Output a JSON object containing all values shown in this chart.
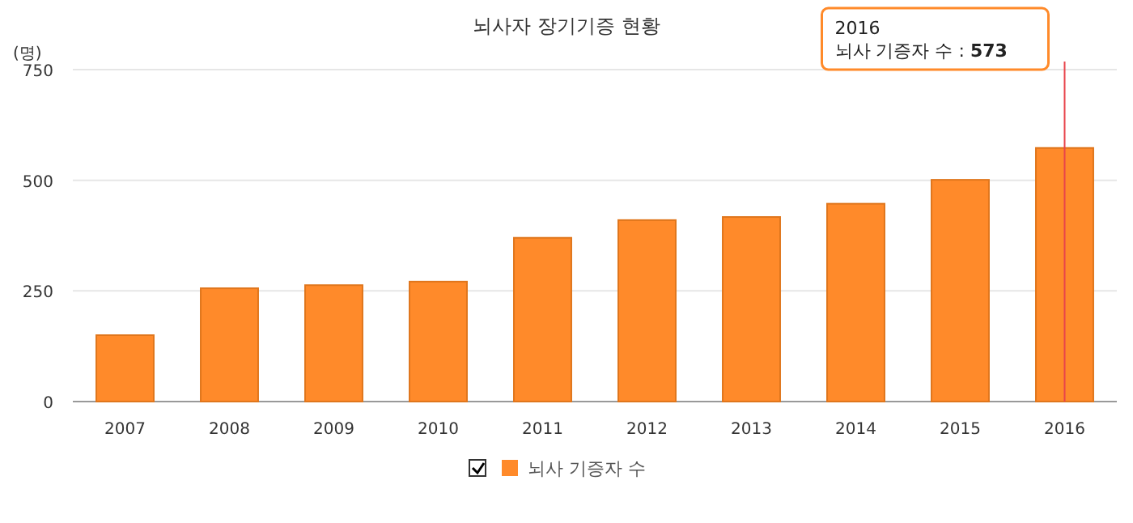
{
  "chart_data": {
    "type": "bar",
    "title": "뇌사자 장기기증 현황",
    "ylabel": "(명)",
    "categories": [
      "2007",
      "2008",
      "2009",
      "2010",
      "2011",
      "2012",
      "2013",
      "2014",
      "2015",
      "2016"
    ],
    "series": [
      {
        "name": "뇌사 기증자 수",
        "color": "#ff8a2a",
        "values": [
          150,
          256,
          263,
          271,
          370,
          410,
          417,
          447,
          501,
          573
        ]
      }
    ],
    "ylim": [
      0,
      750
    ],
    "yticks": [
      0,
      250,
      500,
      750
    ],
    "grid": "y",
    "legend": "bottom",
    "ref_lines": [
      {
        "axis": "x",
        "value": "2016",
        "color": "#e8434a"
      }
    ],
    "annotations": [
      "2016\n뇌사 기증자 수 : **573**"
    ]
  }
}
